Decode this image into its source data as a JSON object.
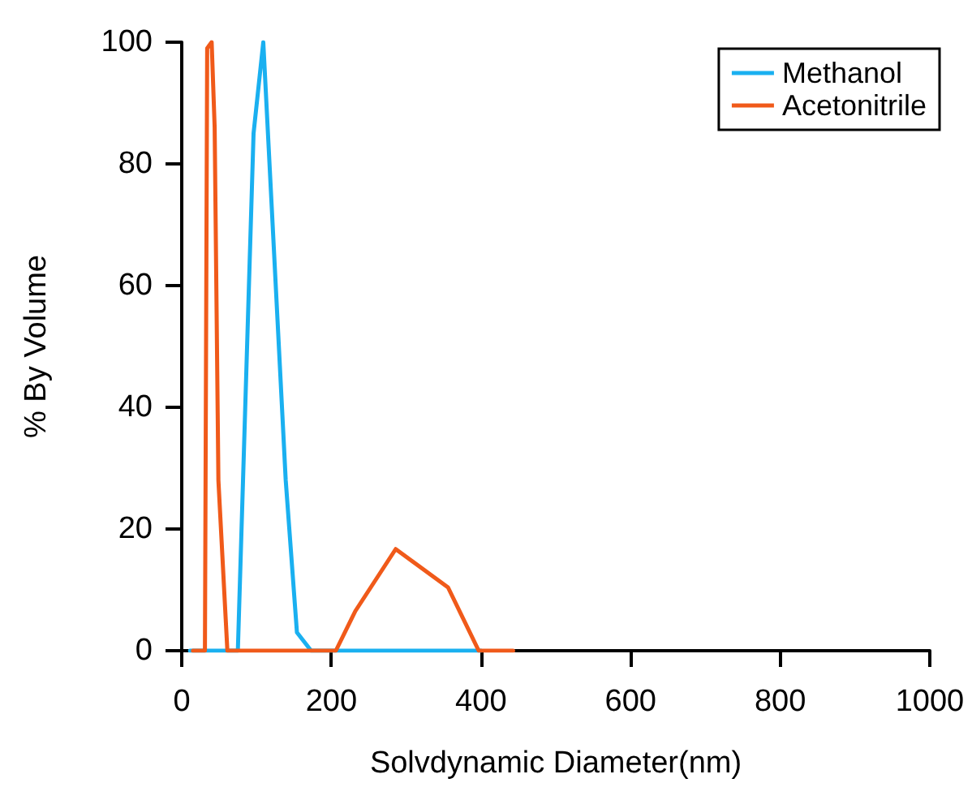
{
  "chart_data": {
    "type": "line",
    "xlabel": "Solvdynamic Diameter(nm)",
    "ylabel": "% By Volume",
    "xlim": [
      0,
      1000
    ],
    "xticks": [
      0,
      200,
      400,
      600,
      800,
      1000
    ],
    "ylim": [
      0,
      100
    ],
    "yticks": [
      0,
      20,
      40,
      60,
      80,
      100
    ],
    "grid": false,
    "legend": "top right",
    "marker": "none",
    "line_style": "solid",
    "series": [
      {
        "name": "Methanol",
        "color": "#1ab0f0",
        "x": [
          11,
          58,
          75,
          96,
          109,
          139,
          154,
          173,
          400
        ],
        "values": [
          0,
          0,
          0,
          85,
          100,
          28,
          3,
          0,
          0
        ]
      },
      {
        "name": "Acetonitrile",
        "color": "#f05a1a",
        "x": [
          15,
          31,
          34,
          40,
          44,
          49,
          61,
          206,
          232,
          286,
          356,
          397,
          443
        ],
        "values": [
          0,
          0,
          99,
          100,
          86,
          28,
          0,
          0,
          6.5,
          16.7,
          10.4,
          0,
          0
        ]
      }
    ]
  }
}
